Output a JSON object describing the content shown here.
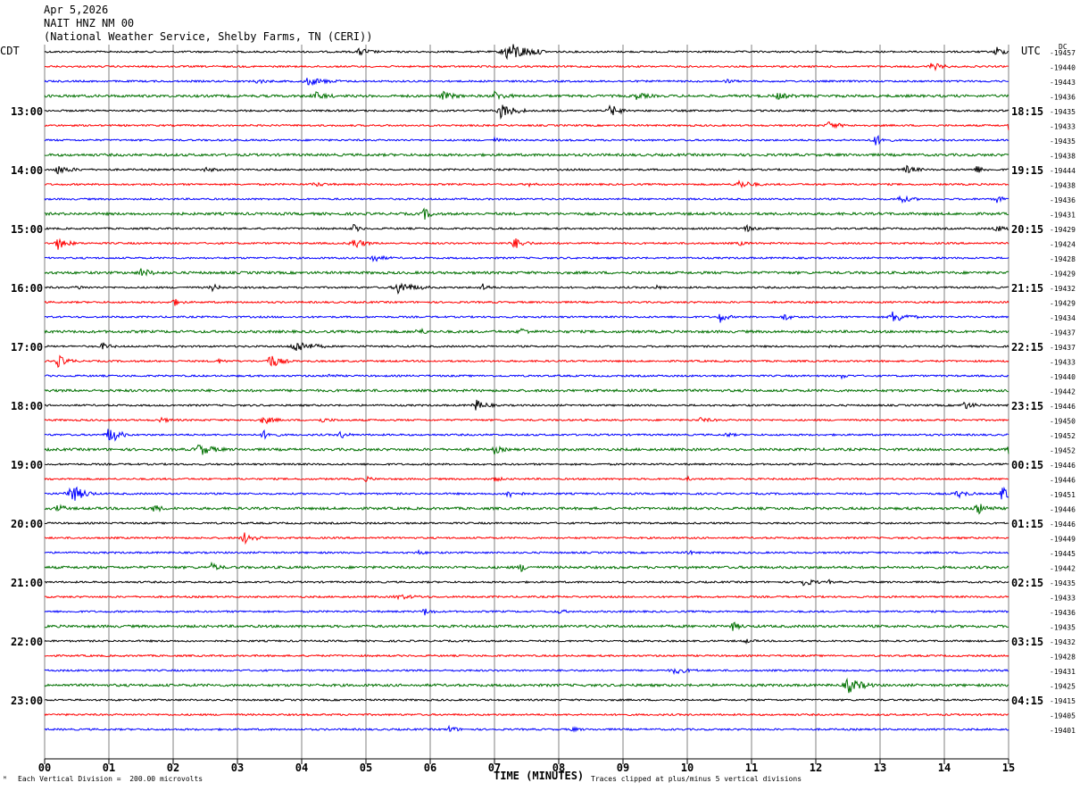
{
  "header": {
    "date": "Apr 5,2026",
    "station": "NAIT HNZ NM 00",
    "location": "(National Weather Service, Shelby Farms, TN (CERI))"
  },
  "corner_left": "CDT",
  "corner_right": "UTC",
  "dc_label": "DC",
  "footer": {
    "scale": "Each Vertical Division =  200.00 microvolts",
    "clip": "Traces clipped at plus/minus 5 vertical divisions",
    "xlabel": "TIME (MINUTES)"
  },
  "colors": {
    "trace_cycle": [
      "#000000",
      "#ff0000",
      "#0000ff",
      "#007000"
    ],
    "grid": "#000000"
  },
  "chart_data": {
    "type": "line",
    "title": "NAIT HNZ NM 00",
    "xlabel": "TIME (MINUTES)",
    "xlim": [
      0,
      15
    ],
    "x_ticks": [
      "00",
      "01",
      "02",
      "03",
      "04",
      "05",
      "06",
      "07",
      "08",
      "09",
      "10",
      "11",
      "12",
      "13",
      "14",
      "15"
    ],
    "left_hour_labels": [
      "13:00",
      "14:00",
      "15:00",
      "16:00",
      "17:00",
      "18:00",
      "19:00",
      "20:00",
      "21:00",
      "22:00",
      "23:00"
    ],
    "right_hour_labels": [
      "18:15",
      "19:15",
      "20:15",
      "21:15",
      "22:15",
      "23:15",
      "00:15",
      "01:15",
      "02:15",
      "03:15",
      "04:15"
    ],
    "trace_dc_offsets": [
      -19457,
      -19440,
      -19443,
      -19436,
      -19435,
      -19433,
      -19435,
      -19438,
      -19444,
      -19438,
      -19436,
      -19431,
      -19429,
      -19424,
      -19428,
      -19429,
      -19432,
      -19429,
      -19434,
      -19437,
      -19437,
      -19433,
      -19440,
      -19442,
      -19446,
      -19450,
      -19452,
      -19452,
      -19446,
      -19446,
      -19451,
      -19446,
      -19446,
      -19449,
      -19445,
      -19442,
      -19435,
      -19433,
      -19436,
      -19435,
      -19432,
      -19428,
      -19431,
      -19425,
      -19415,
      -19405,
      -19401
    ],
    "events": [
      [
        [
          7.2,
          6,
          6
        ],
        [
          4.9,
          2,
          3
        ],
        [
          14.8,
          3,
          2
        ]
      ],
      [
        [
          13.8,
          2,
          3
        ]
      ],
      [
        [
          4.1,
          2,
          5
        ],
        [
          3.3,
          1,
          3
        ],
        [
          10.6,
          1,
          2
        ]
      ],
      [
        [
          4.2,
          2,
          3
        ],
        [
          6.2,
          2,
          3
        ],
        [
          7.0,
          2,
          3
        ],
        [
          9.2,
          1.5,
          3
        ],
        [
          11.4,
          1.5,
          3
        ]
      ],
      [
        [
          7.1,
          4,
          4
        ],
        [
          8.8,
          3,
          3
        ]
      ],
      [
        [
          12.2,
          2,
          3
        ],
        [
          15.0,
          2,
          2
        ]
      ],
      [
        [
          12.9,
          3,
          3
        ],
        [
          7.0,
          1,
          2
        ]
      ],
      [],
      [
        [
          0.2,
          2,
          4
        ],
        [
          13.4,
          2,
          3
        ],
        [
          14.5,
          2,
          2
        ],
        [
          2.5,
          1,
          3
        ]
      ],
      [
        [
          4.2,
          1,
          3
        ],
        [
          10.8,
          2,
          4
        ],
        [
          7.5,
          1,
          2
        ]
      ],
      [
        [
          13.3,
          2,
          3
        ],
        [
          14.8,
          2,
          2
        ]
      ],
      [
        [
          5.9,
          3,
          2
        ]
      ],
      [
        [
          4.8,
          2,
          2
        ],
        [
          10.9,
          2,
          2
        ],
        [
          14.8,
          1.5,
          3
        ]
      ],
      [
        [
          0.2,
          3,
          3
        ],
        [
          4.8,
          3,
          3
        ],
        [
          7.3,
          3,
          3
        ],
        [
          10.8,
          1,
          2
        ]
      ],
      [
        [
          5.1,
          2,
          3
        ]
      ],
      [
        [
          1.5,
          2,
          3
        ]
      ],
      [
        [
          0.5,
          1,
          2
        ],
        [
          2.6,
          2,
          2
        ],
        [
          5.5,
          3,
          5
        ],
        [
          6.8,
          2,
          2
        ],
        [
          9.5,
          1,
          2
        ]
      ],
      [
        [
          2.0,
          2,
          2
        ]
      ],
      [
        [
          10.5,
          3,
          2
        ],
        [
          11.5,
          2,
          2
        ],
        [
          13.2,
          3,
          4
        ]
      ],
      [
        [
          5.8,
          2,
          2
        ],
        [
          7.4,
          2,
          2
        ]
      ],
      [
        [
          0.9,
          2,
          2
        ],
        [
          3.9,
          3,
          5
        ],
        [
          12.1,
          1,
          2
        ]
      ],
      [
        [
          0.2,
          3,
          3
        ],
        [
          2.7,
          1,
          2
        ],
        [
          3.5,
          4,
          3
        ]
      ],
      [
        [
          4.4,
          1,
          2
        ],
        [
          12.4,
          1,
          2
        ]
      ],
      [],
      [
        [
          6.7,
          3,
          3
        ],
        [
          14.3,
          2,
          3
        ]
      ],
      [
        [
          1.8,
          1,
          3
        ],
        [
          3.4,
          2,
          3
        ],
        [
          4.3,
          1,
          3
        ],
        [
          10.2,
          1,
          3
        ]
      ],
      [
        [
          1.0,
          5,
          3
        ],
        [
          3.4,
          2,
          3
        ],
        [
          4.6,
          2,
          2
        ],
        [
          10.6,
          1,
          2
        ]
      ],
      [
        [
          2.4,
          3,
          4
        ],
        [
          7.0,
          2,
          2
        ],
        [
          15.0,
          2,
          2
        ]
      ],
      [],
      [
        [
          5.0,
          1,
          2
        ],
        [
          7.0,
          1,
          2
        ],
        [
          10.0,
          1,
          1
        ]
      ],
      [
        [
          0.4,
          5,
          4
        ],
        [
          7.2,
          2,
          3
        ],
        [
          14.2,
          2,
          3
        ],
        [
          14.9,
          5,
          2
        ]
      ],
      [
        [
          0.2,
          2,
          2
        ],
        [
          1.7,
          2,
          2
        ],
        [
          14.5,
          3,
          3
        ]
      ],
      [],
      [
        [
          3.1,
          3,
          3
        ]
      ],
      [
        [
          5.8,
          1,
          2
        ],
        [
          10.0,
          1,
          2
        ]
      ],
      [
        [
          2.6,
          2,
          2
        ],
        [
          7.4,
          2,
          2
        ]
      ],
      [
        [
          11.8,
          2,
          3
        ],
        [
          12.2,
          1,
          1
        ]
      ],
      [
        [
          5.5,
          1,
          5
        ]
      ],
      [
        [
          5.9,
          2,
          2
        ],
        [
          8.0,
          1,
          2
        ]
      ],
      [
        [
          10.7,
          2,
          2
        ]
      ],
      [
        [
          10.9,
          1,
          2
        ]
      ],
      [],
      [
        [
          9.8,
          1.5,
          4
        ]
      ],
      [
        [
          12.5,
          4,
          4
        ]
      ],
      [],
      [],
      [
        [
          6.3,
          2,
          2
        ],
        [
          8.2,
          1,
          2
        ]
      ]
    ]
  }
}
